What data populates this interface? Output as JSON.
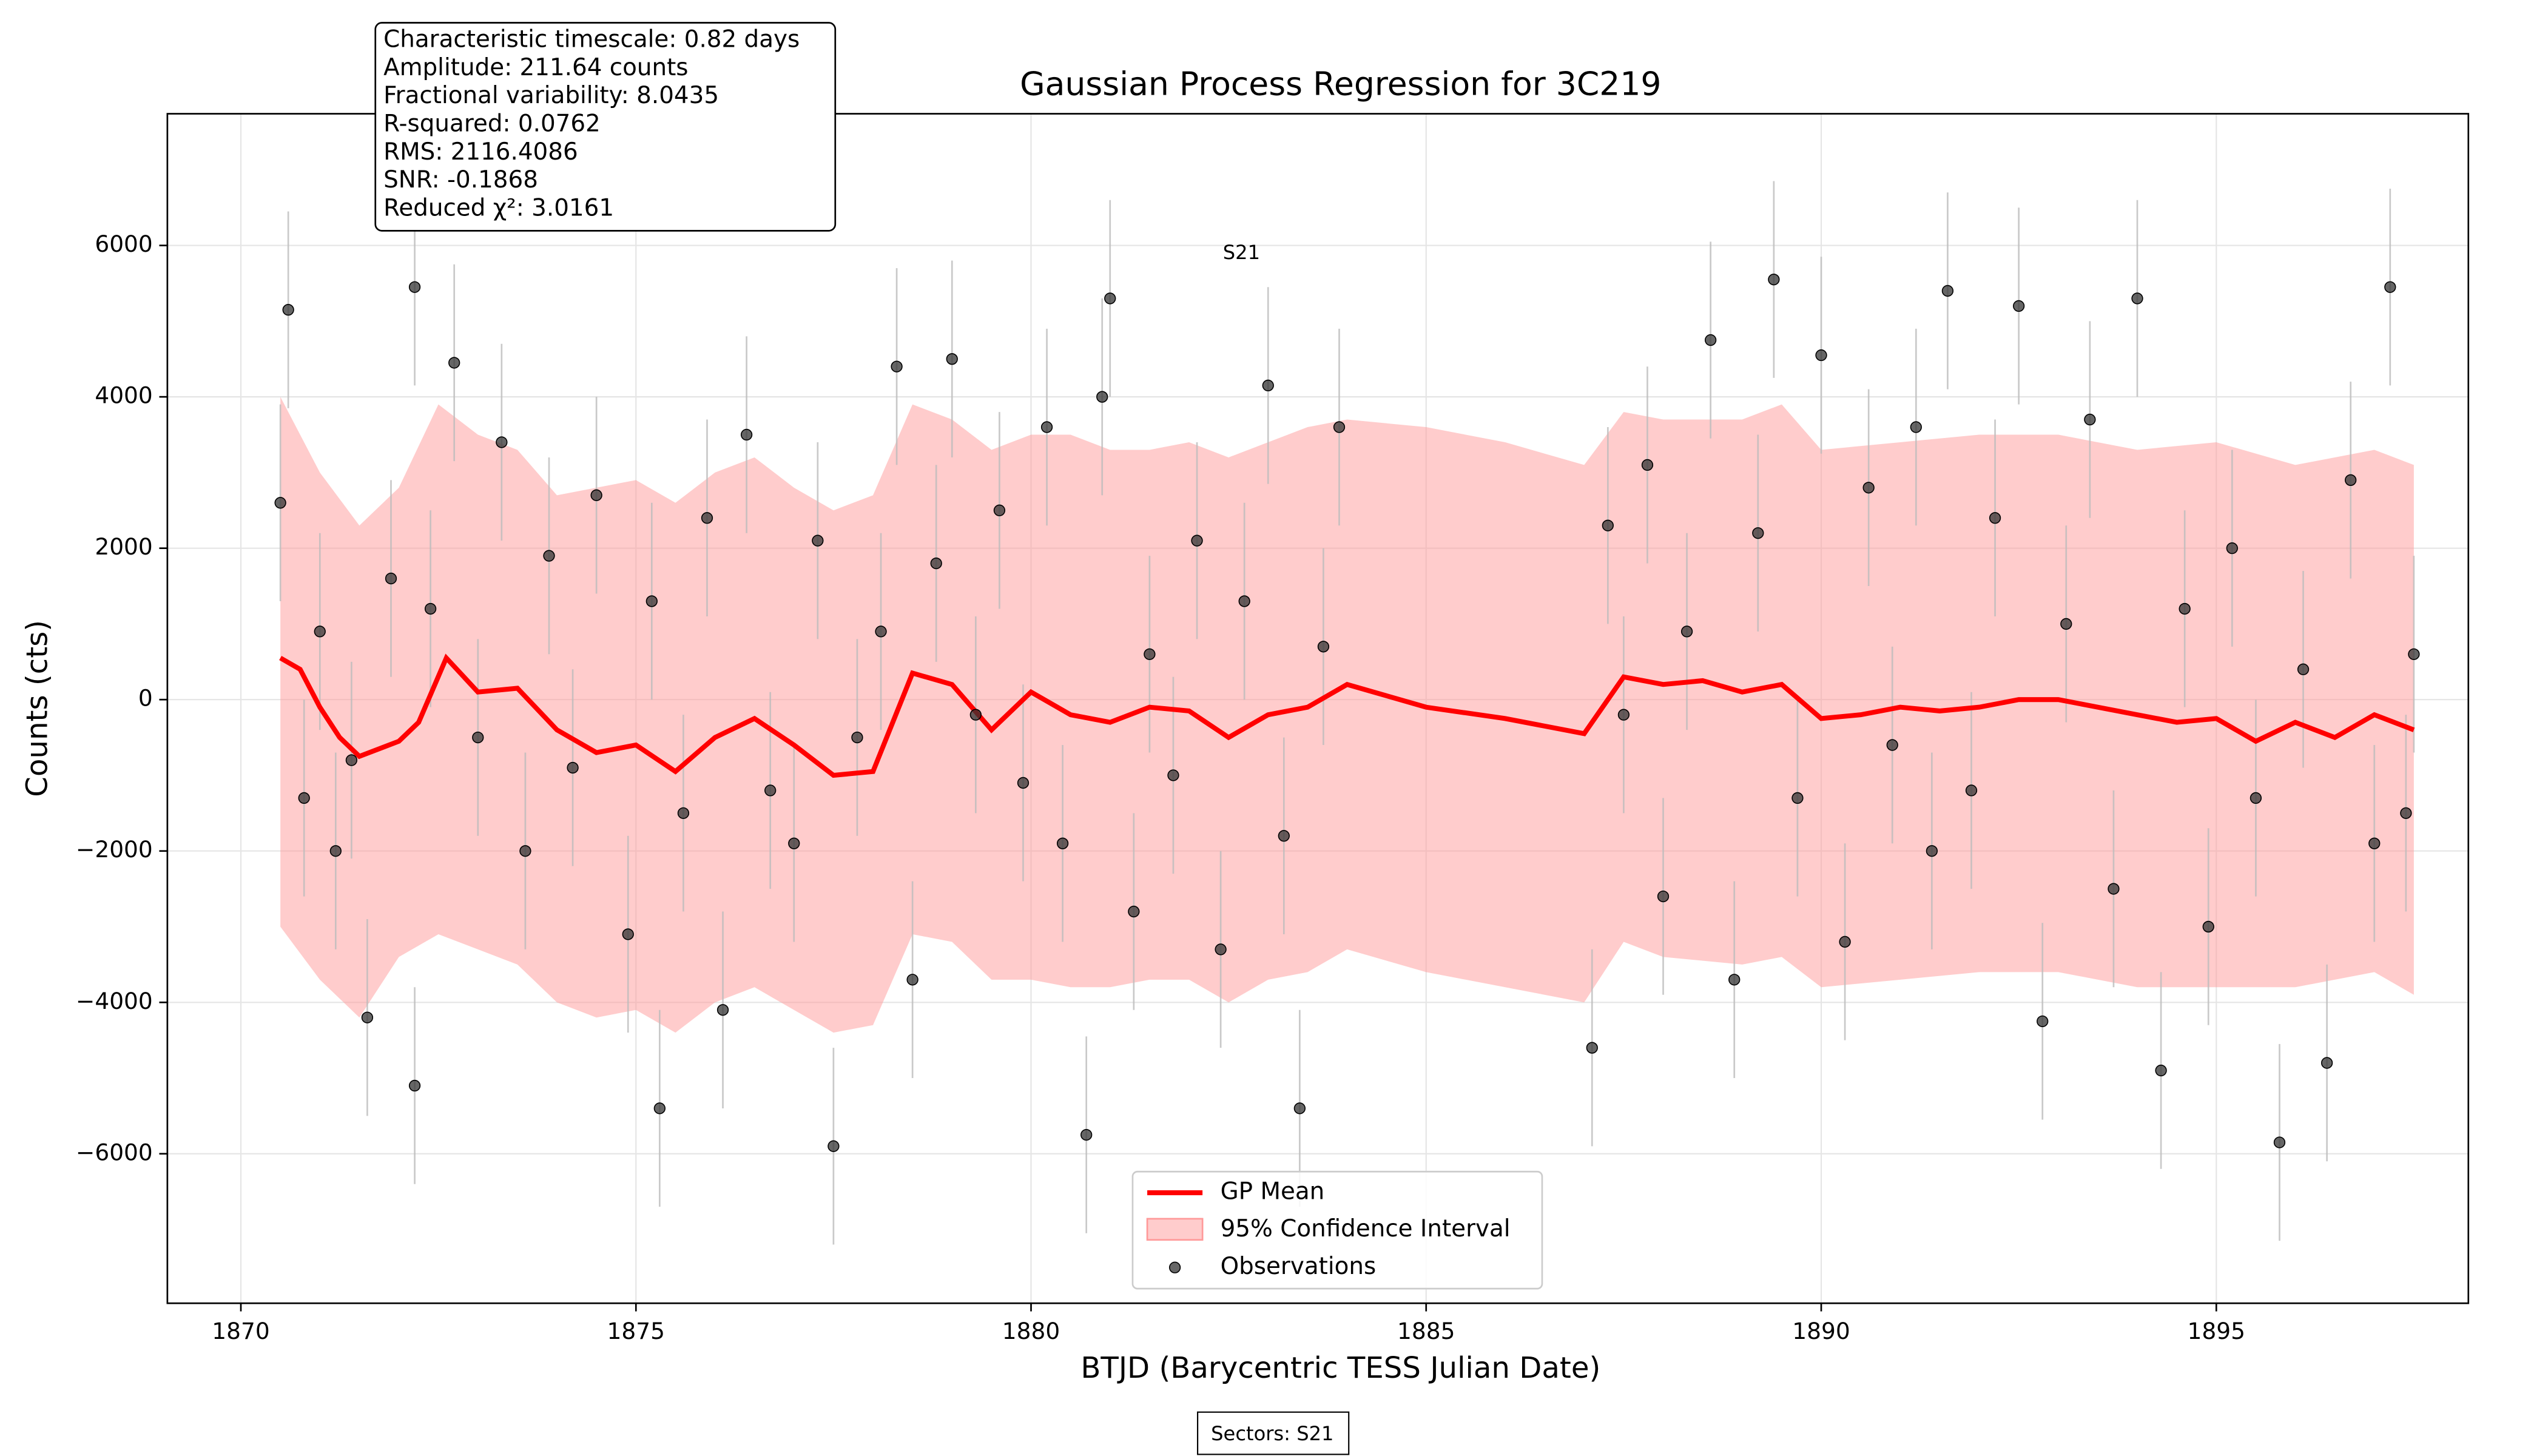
{
  "chart_data": {
    "type": "line",
    "title": "Gaussian Process Regression for 3C219",
    "xlabel": "BTJD (Barycentric TESS Julian Date)",
    "ylabel": "Counts (cts)",
    "annotation": "S21",
    "footer": "Sectors: S21",
    "stats_text": [
      "Characteristic timescale: 0.82 days",
      "Amplitude: 211.64 counts",
      "Fractional variability: 8.0435",
      "R-squared: 0.0762",
      "RMS: 2116.4086",
      "SNR: -0.1868",
      "Reduced χ²: 3.0161"
    ],
    "xlim": [
      1869.07,
      1898.19
    ],
    "ylim": [
      -7975,
      7740
    ],
    "xticks": [
      1870,
      1875,
      1880,
      1885,
      1890,
      1895
    ],
    "yticks": [
      {
        "value": -6000,
        "label": "−6000"
      },
      {
        "value": -4000,
        "label": "−4000"
      },
      {
        "value": -2000,
        "label": "−2000"
      },
      0,
      2000,
      4000,
      6000
    ],
    "grid": true,
    "legend": "lower center",
    "gp_mean": {
      "name": "GP Mean",
      "color": "#ff0000",
      "x": [
        1870.5,
        1870.75,
        1871,
        1871.25,
        1871.5,
        1872,
        1872.25,
        1872.6,
        1873,
        1873.5,
        1874,
        1874.5,
        1875,
        1875.5,
        1876,
        1876.5,
        1877,
        1877.5,
        1878,
        1878.5,
        1879,
        1879.5,
        1880,
        1880.5,
        1881,
        1881.5,
        1882,
        1882.5,
        1883,
        1883.5,
        1884,
        1885,
        1886,
        1887,
        1887.5,
        1888,
        1888.5,
        1889,
        1889.5,
        1890,
        1890.5,
        1891,
        1891.5,
        1892,
        1892.5,
        1893,
        1893.5,
        1894,
        1894.5,
        1895,
        1895.5,
        1896,
        1896.5,
        1897,
        1897.5
      ],
      "values": [
        550,
        400,
        -100,
        -500,
        -750,
        -550,
        -300,
        550,
        100,
        150,
        -400,
        -700,
        -600,
        -950,
        -500,
        -250,
        -600,
        -1000,
        -950,
        350,
        200,
        -400,
        100,
        -200,
        -300,
        -100,
        -150,
        -500,
        -200,
        -100,
        200,
        -100,
        -250,
        -450,
        300,
        200,
        250,
        100,
        200,
        -250,
        -200,
        -100,
        -150,
        -100,
        0,
        0,
        -100,
        -200,
        -300,
        -250,
        -550,
        -300,
        -500,
        -200,
        -400
      ]
    },
    "confidence_interval": {
      "name": "95% Confidence Interval",
      "color": "#ff9999",
      "x": [
        1870.5,
        1871,
        1871.5,
        1872,
        1872.5,
        1873,
        1873.5,
        1874,
        1874.5,
        1875,
        1875.5,
        1876,
        1876.5,
        1877,
        1877.5,
        1878,
        1878.5,
        1879,
        1879.5,
        1880,
        1880.5,
        1881,
        1881.5,
        1882,
        1882.5,
        1883,
        1883.5,
        1884,
        1885,
        1886,
        1887,
        1887.5,
        1888,
        1889,
        1889.5,
        1890,
        1891,
        1892,
        1893,
        1894,
        1895,
        1896,
        1897,
        1897.5
      ],
      "upper": [
        4000,
        3000,
        2300,
        2800,
        3900,
        3500,
        3300,
        2700,
        2800,
        2900,
        2600,
        3000,
        3200,
        2800,
        2500,
        2700,
        3900,
        3700,
        3300,
        3500,
        3500,
        3300,
        3300,
        3400,
        3200,
        3400,
        3600,
        3700,
        3600,
        3400,
        3100,
        3800,
        3700,
        3700,
        3900,
        3300,
        3400,
        3500,
        3500,
        3300,
        3400,
        3100,
        3300,
        3100
      ],
      "lower": [
        -3000,
        -3700,
        -4200,
        -3400,
        -3100,
        -3300,
        -3500,
        -4000,
        -4200,
        -4100,
        -4400,
        -4000,
        -3800,
        -4100,
        -4400,
        -4300,
        -3100,
        -3200,
        -3700,
        -3700,
        -3800,
        -3800,
        -3700,
        -3700,
        -4000,
        -3700,
        -3600,
        -3300,
        -3600,
        -3800,
        -4000,
        -3200,
        -3400,
        -3500,
        -3400,
        -3800,
        -3700,
        -3600,
        -3600,
        -3800,
        -3800,
        -3800,
        -3600,
        -3900
      ]
    },
    "observations": {
      "name": "Observations",
      "color": "#333333",
      "yerr": 1300,
      "x": [
        1870.5,
        1870.6,
        1870.8,
        1871.0,
        1871.2,
        1871.4,
        1871.6,
        1871.9,
        1872.2,
        1872.2,
        1872.4,
        1872.7,
        1873.0,
        1873.3,
        1873.6,
        1873.9,
        1874.2,
        1874.5,
        1874.9,
        1875.2,
        1875.3,
        1875.6,
        1875.9,
        1876.1,
        1876.4,
        1876.7,
        1877.0,
        1877.3,
        1877.5,
        1877.8,
        1878.1,
        1878.3,
        1878.5,
        1878.8,
        1879.0,
        1879.3,
        1879.6,
        1879.9,
        1880.2,
        1880.4,
        1880.7,
        1880.9,
        1881.0,
        1881.3,
        1881.5,
        1881.8,
        1882.1,
        1882.4,
        1882.7,
        1883.0,
        1883.2,
        1883.4,
        1883.7,
        1883.9,
        1887.1,
        1887.3,
        1887.5,
        1887.8,
        1888.0,
        1888.3,
        1888.6,
        1888.9,
        1889.2,
        1889.4,
        1889.7,
        1890.0,
        1890.3,
        1890.6,
        1890.9,
        1891.2,
        1891.4,
        1891.6,
        1891.9,
        1892.2,
        1892.5,
        1892.8,
        1893.1,
        1893.4,
        1893.7,
        1894.0,
        1894.3,
        1894.6,
        1894.9,
        1895.2,
        1895.5,
        1895.8,
        1896.1,
        1896.4,
        1896.7,
        1897.0,
        1897.2,
        1897.4,
        1897.5
      ],
      "values": [
        2600,
        5150,
        -1300,
        900,
        -2000,
        -800,
        -4200,
        1600,
        5450,
        -5100,
        1200,
        4450,
        -500,
        3400,
        -2000,
        1900,
        -900,
        2700,
        -3100,
        1300,
        -5400,
        -1500,
        2400,
        -4100,
        3500,
        -1200,
        -1900,
        2100,
        -5900,
        -500,
        900,
        4400,
        -3700,
        1800,
        4500,
        -200,
        2500,
        -1100,
        3600,
        -1900,
        -5750,
        4000,
        5300,
        -2800,
        600,
        -1000,
        2100,
        -3300,
        1300,
        4150,
        -1800,
        -5400,
        700,
        3600,
        -4600,
        2300,
        -200,
        3100,
        -2600,
        900,
        4750,
        -3700,
        2200,
        5550,
        -1300,
        4550,
        -3200,
        2800,
        -600,
        3600,
        -2000,
        5400,
        -1200,
        2400,
        5200,
        -4250,
        1000,
        3700,
        -2500,
        5300,
        -4900,
        1200,
        -3000,
        2000,
        -1300,
        -5850,
        400,
        -4800,
        2900,
        -1900,
        5450,
        -1500,
        600
      ]
    }
  }
}
